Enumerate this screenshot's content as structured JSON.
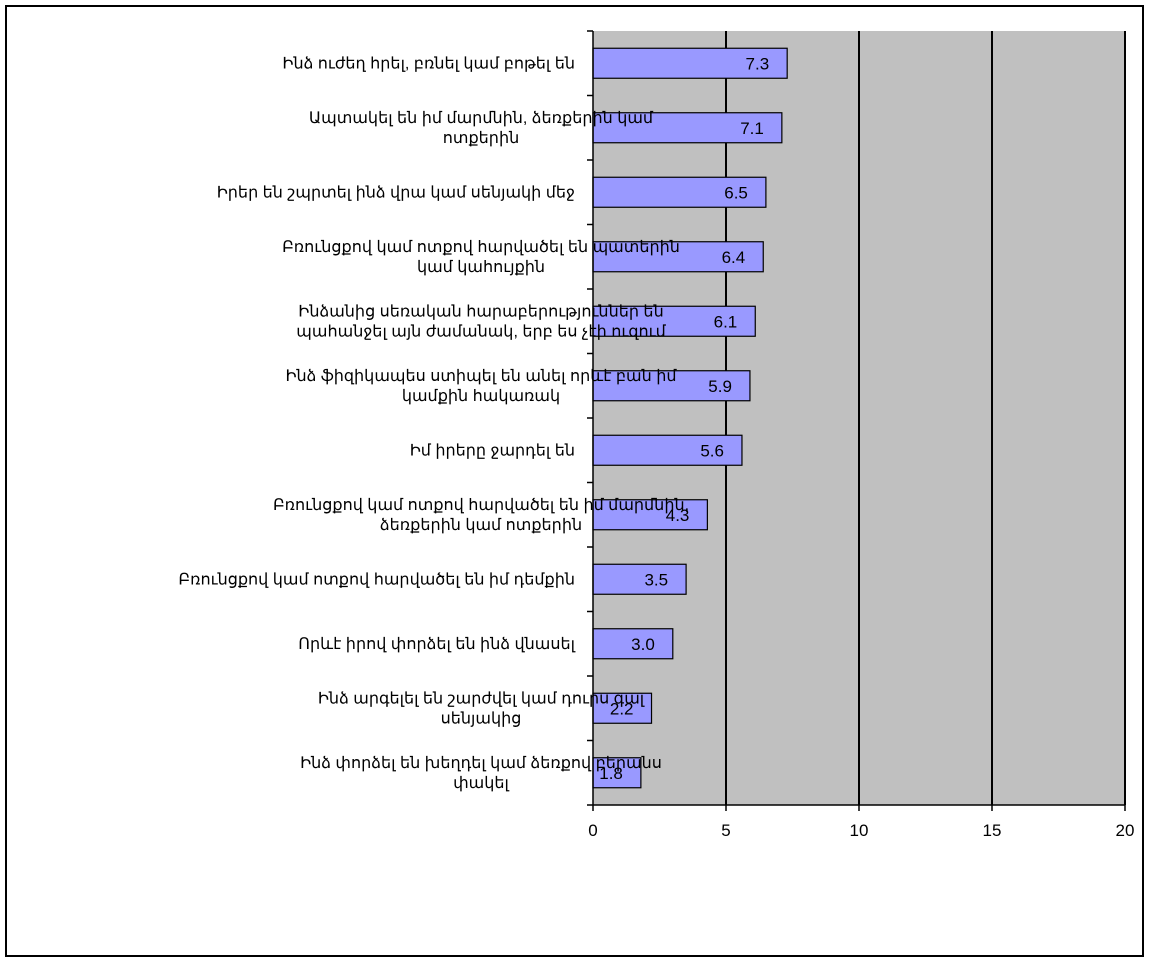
{
  "chart_data": {
    "type": "bar",
    "orientation": "horizontal",
    "categories": [
      [
        "Ինձ ուժեղ հրել, բռնել կամ բոթել են"
      ],
      [
        "Ապտակել են իմ մարմնին, ձեռքերին կամ",
        "ոտքերին"
      ],
      [
        "Իրեր են շպրտել ինձ վրա կամ սենյակի մեջ"
      ],
      [
        "Բռունցքով կամ ոտքով հարվածել են պատերին",
        "կամ կահույքին"
      ],
      [
        "Ինձանից սեռական հարաբերություններ են",
        "պահանջել այն ժամանակ, երբ ես չէի ուզում"
      ],
      [
        "Ինձ ֆիզիկապես ստիպել են անել որևէ բան իմ",
        "կամքին հակառակ"
      ],
      [
        "Իմ իրերը ջարդել են"
      ],
      [
        "Բռունցքով կամ ոտքով հարվածել են իմ մարմնին,",
        "ձեռքերին կամ ոտքերին"
      ],
      [
        "Բռունցքով կամ ոտքով հարվածել են իմ դեմքին"
      ],
      [
        "Որևէ իրով փորձել են ինձ վնասել"
      ],
      [
        "Ինձ արգելել են շարժվել կամ դուրս գալ",
        "սենյակից"
      ],
      [
        "Ինձ փորձել են խեղդել կամ ձեռքով բերանս",
        "փակել"
      ]
    ],
    "values": [
      7.3,
      7.1,
      6.5,
      6.4,
      6.1,
      5.9,
      5.6,
      4.3,
      3.5,
      3.0,
      2.2,
      1.8
    ],
    "value_labels": [
      "7.3",
      "7.1",
      "6.5",
      "6.4",
      "6.1",
      "5.9",
      "5.6",
      "4.3",
      "3.5",
      "3.0",
      "2.2",
      "1.8"
    ],
    "xticks": [
      "0",
      "5",
      "10",
      "15",
      "20"
    ],
    "xlim": [
      0,
      20
    ],
    "grid": "vertical major lines",
    "plot_background": "#c0c0c0",
    "bar_color": "#9999ff"
  }
}
